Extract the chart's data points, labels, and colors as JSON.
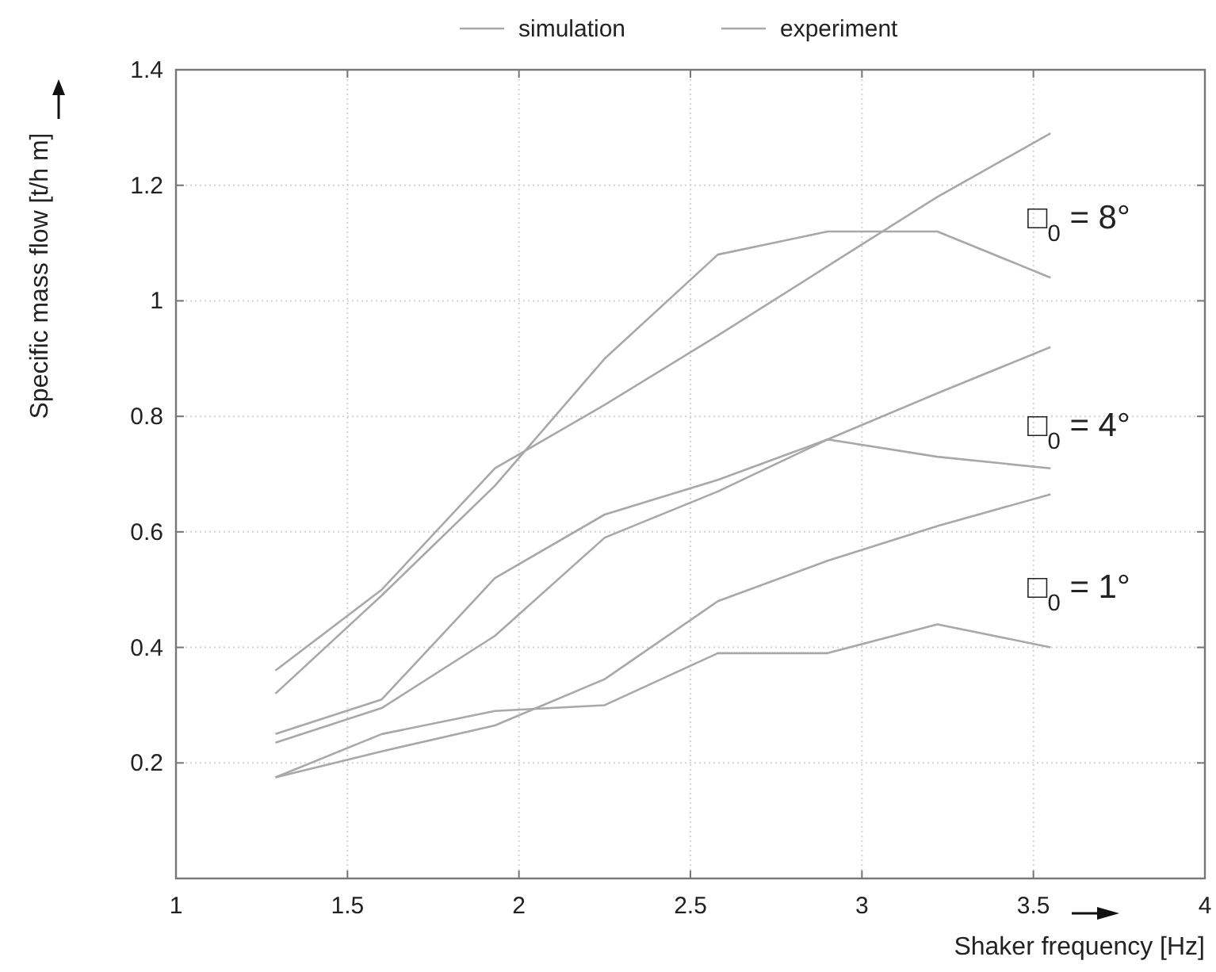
{
  "chart_data": {
    "type": "line",
    "xlabel": "Shaker frequency  [Hz]",
    "ylabel": "Specific mass flow [t/h m]",
    "x": [
      1.29,
      1.6,
      1.93,
      2.25,
      2.58,
      2.9,
      3.22,
      3.55
    ],
    "series": [
      {
        "name": "simulation",
        "color": "#a8a8a8",
        "values": [
          0.36,
          0.5,
          0.71,
          0.82,
          0.94,
          1.06,
          1.18,
          1.29
        ]
      },
      {
        "name": "experiment",
        "color": "#a8a8a8",
        "values": [
          0.32,
          0.49,
          0.68,
          0.9,
          1.08,
          1.12,
          1.12,
          1.04
        ]
      },
      {
        "color": "#a8a8a8",
        "values": [
          0.235,
          0.295,
          0.42,
          0.59,
          0.67,
          0.76,
          0.84,
          0.92
        ]
      },
      {
        "color": "#a8a8a8",
        "values": [
          0.25,
          0.31,
          0.52,
          0.63,
          0.69,
          0.76,
          0.73,
          0.71
        ]
      },
      {
        "color": "#a8a8a8",
        "values": [
          0.175,
          0.22,
          0.265,
          0.345,
          0.48,
          0.55,
          0.61,
          0.665
        ]
      },
      {
        "color": "#a8a8a8",
        "values": [
          0.175,
          0.25,
          0.29,
          0.3,
          0.39,
          0.39,
          0.44,
          0.4
        ]
      }
    ],
    "xlim": [
      1,
      4
    ],
    "xticks": [
      1,
      1.5,
      2,
      2.5,
      3,
      3.5,
      4
    ],
    "ylim": [
      0,
      1.4
    ],
    "yticks": [
      0.2,
      0.4,
      0.6,
      0.8,
      1,
      1.2,
      1.4
    ],
    "grid": true,
    "legend": "top",
    "marker": "none",
    "line_style": "solid",
    "annotations": [
      "□$_{0}$ = 8°",
      "□$_{0}$ = 4°",
      "□$_{0}$ = 1°"
    ]
  }
}
